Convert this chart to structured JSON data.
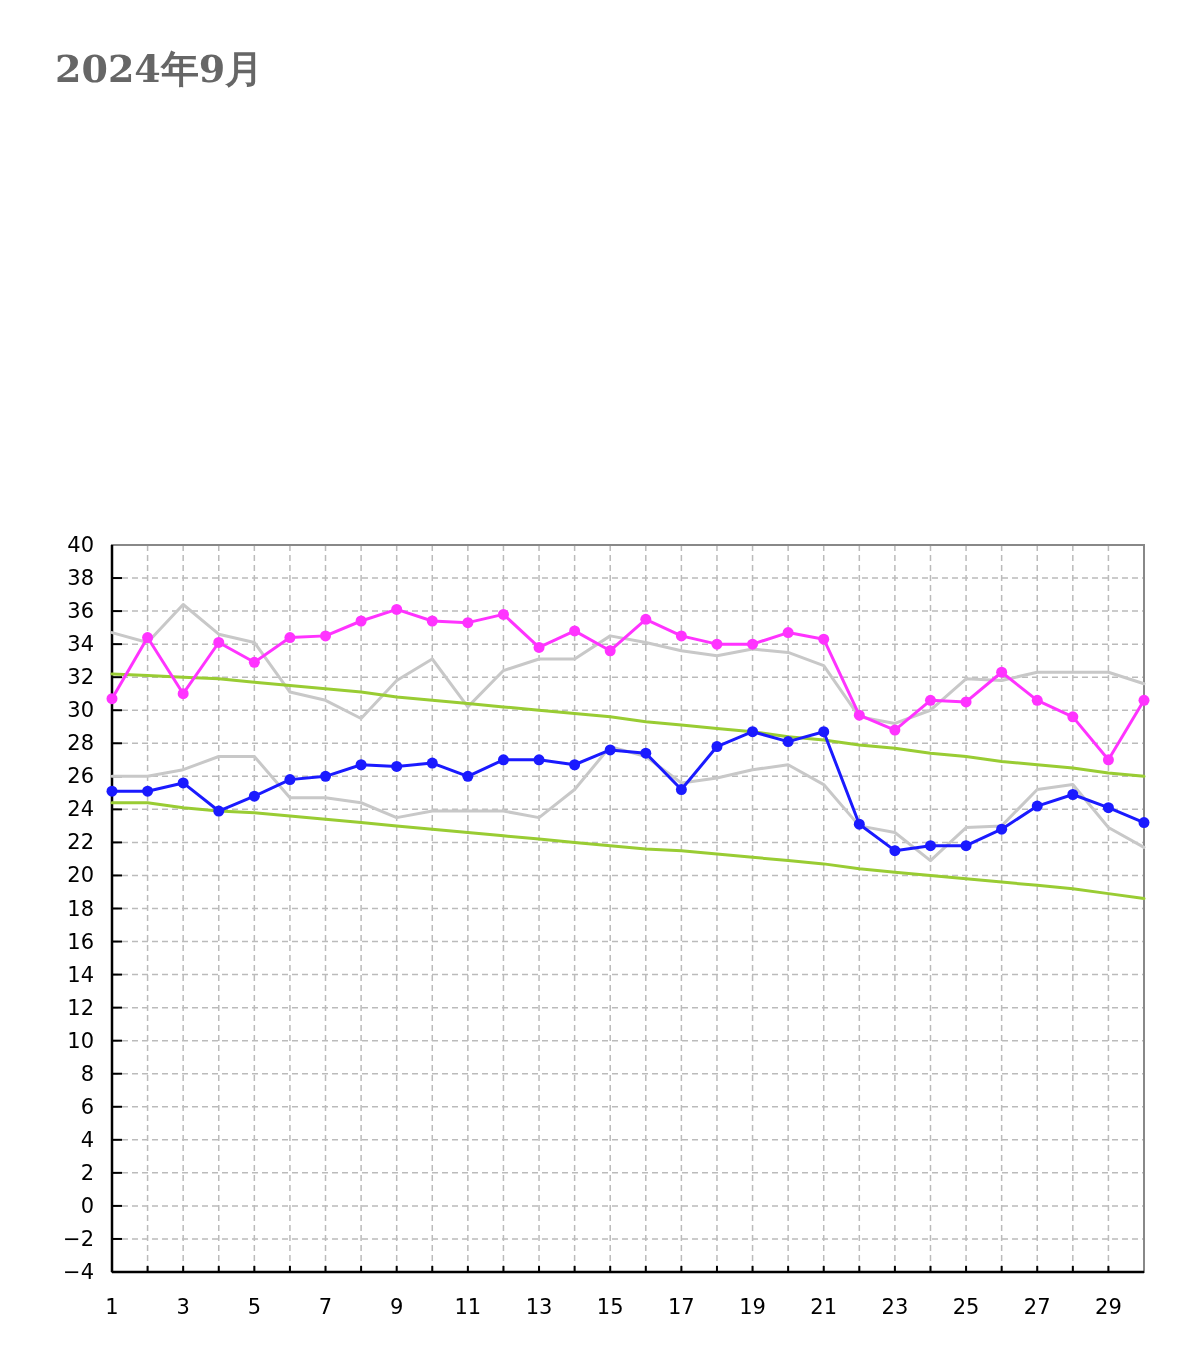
{
  "chart_data": {
    "type": "line",
    "title": "2024年9月",
    "x": [
      1,
      2,
      3,
      4,
      5,
      6,
      7,
      8,
      9,
      10,
      11,
      12,
      13,
      14,
      15,
      16,
      17,
      18,
      19,
      20,
      21,
      22,
      23,
      24,
      25,
      26,
      27,
      28,
      29,
      30
    ],
    "xlim": [
      1,
      30
    ],
    "xticks": [
      1,
      {
        "value": 2,
        "label": null
      },
      3,
      {
        "value": 4,
        "label": null
      },
      5,
      {
        "value": 6,
        "label": null
      },
      7,
      {
        "value": 8,
        "label": null
      },
      9,
      {
        "value": 10,
        "label": null
      },
      11,
      {
        "value": 12,
        "label": null
      },
      13,
      {
        "value": 14,
        "label": null
      },
      15,
      {
        "value": 16,
        "label": null
      },
      17,
      {
        "value": 18,
        "label": null
      },
      19,
      {
        "value": 20,
        "label": null
      },
      21,
      {
        "value": 22,
        "label": null
      },
      23,
      {
        "value": 24,
        "label": null
      },
      25,
      {
        "value": 26,
        "label": null
      },
      27,
      {
        "value": 28,
        "label": null
      },
      29,
      {
        "value": 30,
        "label": null
      }
    ],
    "ylim": [
      -4,
      40
    ],
    "yticks": [
      -4,
      -2,
      0,
      2,
      4,
      6,
      8,
      10,
      12,
      14,
      16,
      18,
      20,
      22,
      24,
      26,
      28,
      30,
      32,
      34,
      36,
      38,
      40
    ],
    "grid": true,
    "series": [
      {
        "color": "#c8c8c8",
        "marker": "none",
        "values": [
          34.7,
          34.1,
          36.4,
          34.6,
          34.1,
          31.1,
          30.6,
          29.5,
          31.8,
          33.1,
          30.2,
          32.4,
          33.1,
          33.1,
          34.5,
          34.1,
          33.6,
          33.3,
          33.7,
          33.5,
          32.7,
          29.6,
          29.2,
          30.0,
          31.9,
          31.8,
          32.3,
          32.3,
          32.3,
          31.6
        ]
      },
      {
        "color": "#c8c8c8",
        "marker": "none",
        "values": [
          26.0,
          26.0,
          26.4,
          27.2,
          27.2,
          24.7,
          24.7,
          24.4,
          23.5,
          23.9,
          23.9,
          23.9,
          23.5,
          25.2,
          27.8,
          27.2,
          25.6,
          25.9,
          26.4,
          26.7,
          25.5,
          23.0,
          22.6,
          20.9,
          22.9,
          23.0,
          25.2,
          25.5,
          22.9,
          21.7
        ]
      },
      {
        "color": "#99cc33",
        "marker": "none",
        "values": [
          32.2,
          32.1,
          32.0,
          31.9,
          31.7,
          31.5,
          31.3,
          31.1,
          30.8,
          30.6,
          30.4,
          30.2,
          30.0,
          29.8,
          29.6,
          29.3,
          29.1,
          28.9,
          28.7,
          28.4,
          28.2,
          27.9,
          27.7,
          27.4,
          27.2,
          26.9,
          26.7,
          26.5,
          26.2,
          26.0
        ]
      },
      {
        "color": "#99cc33",
        "marker": "none",
        "values": [
          24.4,
          24.4,
          24.1,
          23.9,
          23.8,
          23.6,
          23.4,
          23.2,
          23.0,
          22.8,
          22.6,
          22.4,
          22.2,
          22.0,
          21.8,
          21.6,
          21.5,
          21.3,
          21.1,
          20.9,
          20.7,
          20.4,
          20.2,
          20.0,
          19.8,
          19.6,
          19.4,
          19.2,
          18.9,
          18.6
        ]
      },
      {
        "color": "#ff33ff",
        "marker": "circle",
        "values": [
          30.7,
          34.4,
          31.0,
          34.1,
          32.9,
          34.4,
          34.5,
          35.4,
          36.1,
          35.4,
          35.3,
          35.8,
          33.8,
          34.8,
          33.6,
          35.5,
          34.5,
          34.0,
          34.0,
          34.7,
          34.3,
          29.7,
          28.8,
          30.6,
          30.5,
          32.3,
          30.6,
          29.6,
          27.0,
          30.6
        ]
      },
      {
        "color": "#1a1aff",
        "marker": "circle",
        "values": [
          25.1,
          25.1,
          25.6,
          23.9,
          24.8,
          25.8,
          26.0,
          26.7,
          26.6,
          26.8,
          26.0,
          27.0,
          27.0,
          26.7,
          27.6,
          27.4,
          25.2,
          27.8,
          28.7,
          28.1,
          28.7,
          23.1,
          21.5,
          21.8,
          21.8,
          22.8,
          24.2,
          24.9,
          24.1,
          23.2
        ]
      }
    ]
  }
}
